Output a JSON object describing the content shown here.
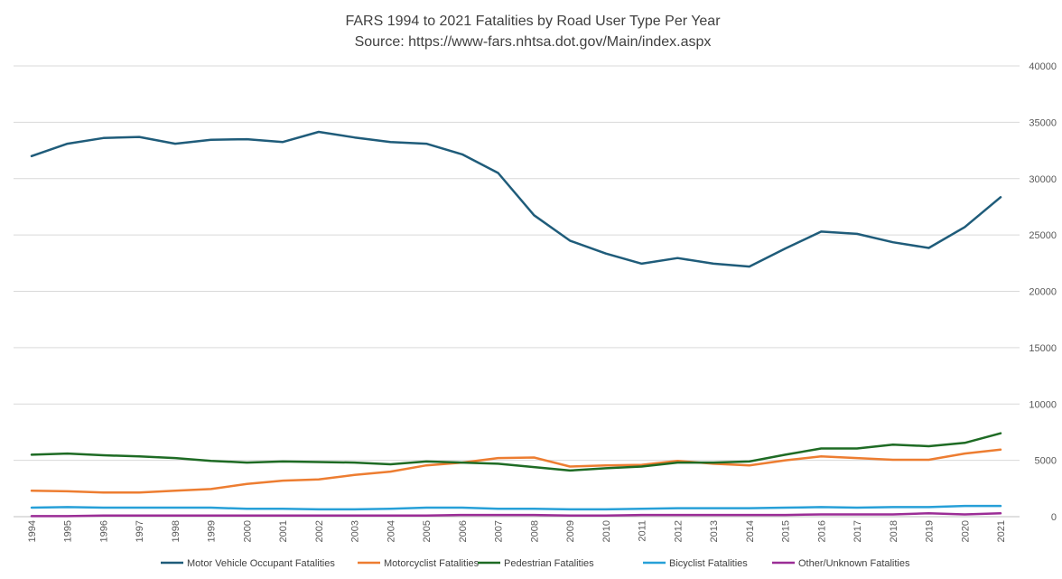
{
  "chart_data": {
    "type": "line",
    "title": "FARS 1994 to 2021 Fatalities by  Road User Type Per Year",
    "subtitle": "Source: https://www-fars.nhtsa.dot.gov/Main/index.aspx",
    "xlabel": "",
    "ylabel": "",
    "ylim": [
      0,
      40000
    ],
    "y_ticks": [
      "40000",
      "35000",
      "30000",
      "25000",
      "20000",
      "15000",
      "10000",
      "5000",
      "0"
    ],
    "y_axis_side": "right",
    "grid": "horizontal",
    "legend_position": "bottom",
    "categories": [
      "1994",
      "1995",
      "1996",
      "1997",
      "1998",
      "1999",
      "2000",
      "2001",
      "2002",
      "2003",
      "2004",
      "2005",
      "2006",
      "2007",
      "2008",
      "2009",
      "2010",
      "2011",
      "2012",
      "2013",
      "2014",
      "2015",
      "2016",
      "2017",
      "2018",
      "2019",
      "2020",
      "2021"
    ],
    "series": [
      {
        "name": "Motor Vehicle Occupant Fatalities",
        "color": "#1f5c7a",
        "values": [
          32000,
          33100,
          33600,
          33700,
          33100,
          33450,
          33500,
          33250,
          34150,
          33650,
          33250,
          33100,
          32150,
          30500,
          26750,
          24500,
          23350,
          22450,
          22950,
          22450,
          22200,
          23800,
          25300,
          25100,
          24350,
          23850,
          25700,
          28350
        ]
      },
      {
        "name": "Motorcyclist Fatalities",
        "color": "#ed7d31",
        "values": [
          2300,
          2250,
          2150,
          2150,
          2300,
          2450,
          2900,
          3200,
          3300,
          3700,
          4000,
          4550,
          4800,
          5200,
          5250,
          4450,
          4550,
          4600,
          4950,
          4700,
          4550,
          5000,
          5350,
          5200,
          5050,
          5050,
          5600,
          5950
        ]
      },
      {
        "name": "Pedestrian Fatalities",
        "color": "#1e6b24",
        "values": [
          5500,
          5600,
          5450,
          5350,
          5200,
          4950,
          4800,
          4900,
          4850,
          4800,
          4650,
          4900,
          4800,
          4700,
          4400,
          4100,
          4300,
          4450,
          4800,
          4800,
          4900,
          5500,
          6050,
          6050,
          6400,
          6250,
          6550,
          7400
        ]
      },
      {
        "name": "Bicyclist Fatalities",
        "color": "#27a0d8",
        "values": [
          800,
          850,
          800,
          800,
          800,
          800,
          700,
          700,
          650,
          650,
          700,
          800,
          800,
          700,
          700,
          650,
          650,
          700,
          750,
          750,
          750,
          800,
          850,
          800,
          850,
          850,
          950,
          950
        ]
      },
      {
        "name": "Other/Unknown Fatalities",
        "color": "#9b2d96",
        "values": [
          50,
          50,
          100,
          100,
          100,
          100,
          100,
          100,
          100,
          100,
          100,
          100,
          150,
          150,
          150,
          100,
          100,
          150,
          150,
          150,
          150,
          150,
          200,
          200,
          200,
          300,
          200,
          300
        ]
      }
    ]
  }
}
